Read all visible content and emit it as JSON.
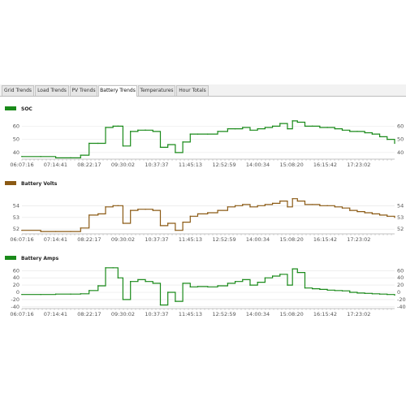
{
  "tabs": [
    {
      "label": "Grid Trends",
      "active": false
    },
    {
      "label": "Load Trends",
      "active": false
    },
    {
      "label": "PV Trends",
      "active": false
    },
    {
      "label": "Battery Trends",
      "active": true
    },
    {
      "label": "Temperatures",
      "active": false
    },
    {
      "label": "Hour Totals",
      "active": false
    }
  ],
  "x_ticks": [
    "06:07:16",
    "07:14:41",
    "08:22:17",
    "09:30:02",
    "10:37:37",
    "11:45:13",
    "12:52:59",
    "14:00:34",
    "15:08:20",
    "16:15:42",
    "17:23:02"
  ],
  "chart_data": [
    {
      "type": "line",
      "legend": "SOC",
      "color": "#1a8a1a",
      "ylim": [
        35,
        67
      ],
      "y_ticks": [
        40,
        50,
        60
      ],
      "x": [
        "06:07",
        "06:45",
        "07:15",
        "07:45",
        "08:05",
        "08:22",
        "08:40",
        "08:55",
        "09:10",
        "09:20",
        "09:30",
        "09:45",
        "10:00",
        "10:15",
        "10:30",
        "10:45",
        "11:00",
        "11:15",
        "11:30",
        "11:45",
        "12:00",
        "12:20",
        "12:40",
        "13:00",
        "13:15",
        "13:30",
        "13:45",
        "14:00",
        "14:15",
        "14:30",
        "14:45",
        "15:00",
        "15:10",
        "15:20",
        "15:35",
        "15:50",
        "16:05",
        "16:20",
        "16:35",
        "16:50",
        "17:05",
        "17:20",
        "17:35",
        "17:50",
        "18:05",
        "18:20",
        "18:35"
      ],
      "values": [
        37,
        37,
        36,
        36,
        38,
        47,
        47,
        59,
        60,
        60,
        45,
        56,
        57,
        57,
        56,
        44,
        46,
        40,
        48,
        54,
        54,
        54,
        56,
        58,
        58,
        59,
        57,
        58,
        59,
        60,
        62,
        58,
        64,
        63,
        60,
        60,
        59,
        59,
        58,
        57,
        56,
        56,
        55,
        54,
        52,
        50,
        47
      ]
    },
    {
      "type": "line",
      "legend": "Battery Volts",
      "color": "#8b5a14",
      "ylim": [
        51.6,
        55.2
      ],
      "y_ticks": [
        52,
        53,
        54
      ],
      "x": [
        "06:07",
        "06:45",
        "07:15",
        "07:45",
        "08:05",
        "08:22",
        "08:40",
        "08:55",
        "09:10",
        "09:20",
        "09:30",
        "09:45",
        "10:00",
        "10:15",
        "10:30",
        "10:45",
        "11:00",
        "11:15",
        "11:30",
        "11:45",
        "12:00",
        "12:20",
        "12:40",
        "13:00",
        "13:15",
        "13:30",
        "13:45",
        "14:00",
        "14:15",
        "14:30",
        "14:45",
        "15:00",
        "15:10",
        "15:20",
        "15:35",
        "15:50",
        "16:05",
        "16:20",
        "16:35",
        "16:50",
        "17:05",
        "17:20",
        "17:35",
        "17:50",
        "18:05",
        "18:20",
        "18:35"
      ],
      "values": [
        51.9,
        51.8,
        51.8,
        51.8,
        52.1,
        53.2,
        53.3,
        53.9,
        54.0,
        54.0,
        52.5,
        53.6,
        53.7,
        53.7,
        53.6,
        52.3,
        52.5,
        51.9,
        52.6,
        53.1,
        53.3,
        53.4,
        53.6,
        53.9,
        54.0,
        54.1,
        53.9,
        54.0,
        54.1,
        54.2,
        54.4,
        53.9,
        54.6,
        54.4,
        54.1,
        54.1,
        54.0,
        54.0,
        53.9,
        53.8,
        53.6,
        53.5,
        53.4,
        53.3,
        53.2,
        53.1,
        53.0
      ]
    },
    {
      "type": "line",
      "legend": "Battery Amps",
      "color": "#1a8a1a",
      "ylim": [
        -45,
        72
      ],
      "y_ticks": [
        -40,
        -20,
        0,
        20,
        40,
        60
      ],
      "x": [
        "06:07",
        "06:45",
        "07:15",
        "07:45",
        "08:05",
        "08:22",
        "08:40",
        "08:55",
        "09:10",
        "09:20",
        "09:30",
        "09:45",
        "10:00",
        "10:15",
        "10:30",
        "10:45",
        "11:00",
        "11:15",
        "11:30",
        "11:45",
        "12:00",
        "12:20",
        "12:40",
        "13:00",
        "13:15",
        "13:30",
        "13:45",
        "14:00",
        "14:15",
        "14:30",
        "14:45",
        "15:00",
        "15:10",
        "15:20",
        "15:35",
        "15:50",
        "16:05",
        "16:20",
        "16:35",
        "16:50",
        "17:05",
        "17:20",
        "17:35",
        "17:50",
        "18:05",
        "18:20",
        "18:35"
      ],
      "values": [
        -6,
        -6,
        -5,
        -5,
        -4,
        5,
        18,
        68,
        68,
        40,
        -20,
        30,
        35,
        30,
        25,
        -35,
        0,
        -25,
        25,
        15,
        16,
        15,
        18,
        25,
        30,
        35,
        20,
        28,
        40,
        45,
        50,
        20,
        65,
        55,
        12,
        10,
        8,
        6,
        5,
        4,
        0,
        -2,
        -3,
        -4,
        -5,
        -6,
        -8
      ]
    }
  ]
}
